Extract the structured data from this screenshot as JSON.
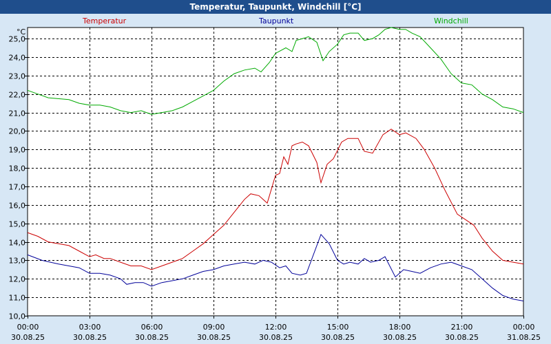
{
  "window": {
    "title": "Temperatur, Taupunkt, Windchill [°C]"
  },
  "chart_data": {
    "type": "line",
    "unit_label": "°C",
    "ylim": [
      10.0,
      25.0
    ],
    "y_ticks": [
      "10,0",
      "11,0",
      "12,0",
      "13,0",
      "14,0",
      "15,0",
      "16,0",
      "17,0",
      "18,0",
      "19,0",
      "20,0",
      "21,0",
      "22,0",
      "23,0",
      "24,0",
      "25,0"
    ],
    "x_hours_range": [
      0,
      24
    ],
    "x_ticks": [
      {
        "time": "00:00",
        "date": "30.08.25"
      },
      {
        "time": "03:00",
        "date": "30.08.25"
      },
      {
        "time": "06:00",
        "date": "30.08.25"
      },
      {
        "time": "09:00",
        "date": "30.08.25"
      },
      {
        "time": "12:00",
        "date": "30.08.25"
      },
      {
        "time": "15:00",
        "date": "30.08.25"
      },
      {
        "time": "18:00",
        "date": "30.08.25"
      },
      {
        "time": "21:00",
        "date": "30.08.25"
      },
      {
        "time": "00:00",
        "date": "31.08.25"
      }
    ],
    "grid": true,
    "series": [
      {
        "name": "Temperatur",
        "color": "#cc0000",
        "points": [
          [
            0,
            14.5
          ],
          [
            0.5,
            14.3
          ],
          [
            1,
            14.0
          ],
          [
            2,
            13.8
          ],
          [
            2.5,
            13.5
          ],
          [
            3,
            13.2
          ],
          [
            3.3,
            13.3
          ],
          [
            3.7,
            13.1
          ],
          [
            4,
            13.1
          ],
          [
            4.5,
            12.9
          ],
          [
            5,
            12.7
          ],
          [
            5.5,
            12.7
          ],
          [
            6,
            12.5
          ],
          [
            6.5,
            12.7
          ],
          [
            7,
            12.9
          ],
          [
            7.5,
            13.1
          ],
          [
            8,
            13.5
          ],
          [
            8.5,
            13.9
          ],
          [
            9,
            14.4
          ],
          [
            9.5,
            14.9
          ],
          [
            10,
            15.6
          ],
          [
            10.5,
            16.3
          ],
          [
            10.8,
            16.6
          ],
          [
            11.2,
            16.5
          ],
          [
            11.6,
            16.1
          ],
          [
            12,
            17.6
          ],
          [
            12.2,
            17.7
          ],
          [
            12.4,
            18.6
          ],
          [
            12.6,
            18.2
          ],
          [
            12.8,
            19.2
          ],
          [
            13,
            19.3
          ],
          [
            13.3,
            19.4
          ],
          [
            13.6,
            19.2
          ],
          [
            14,
            18.3
          ],
          [
            14.2,
            17.2
          ],
          [
            14.5,
            18.2
          ],
          [
            14.8,
            18.5
          ],
          [
            15.2,
            19.4
          ],
          [
            15.5,
            19.6
          ],
          [
            16,
            19.6
          ],
          [
            16.3,
            18.9
          ],
          [
            16.7,
            18.8
          ],
          [
            17.2,
            19.8
          ],
          [
            17.6,
            20.1
          ],
          [
            18,
            19.8
          ],
          [
            18.3,
            19.9
          ],
          [
            18.8,
            19.6
          ],
          [
            19.2,
            19.0
          ],
          [
            19.7,
            18.0
          ],
          [
            20.2,
            16.8
          ],
          [
            20.8,
            15.5
          ],
          [
            21.2,
            15.2
          ],
          [
            21.6,
            14.9
          ],
          [
            22,
            14.2
          ],
          [
            22.5,
            13.5
          ],
          [
            23,
            13.0
          ],
          [
            23.5,
            12.9
          ],
          [
            24,
            12.8
          ]
        ]
      },
      {
        "name": "Taupunkt",
        "color": "#000099",
        "points": [
          [
            0,
            13.3
          ],
          [
            0.7,
            13.0
          ],
          [
            1.5,
            12.8
          ],
          [
            2,
            12.7
          ],
          [
            2.5,
            12.6
          ],
          [
            3,
            12.3
          ],
          [
            3.5,
            12.3
          ],
          [
            4,
            12.2
          ],
          [
            4.5,
            12.0
          ],
          [
            4.8,
            11.7
          ],
          [
            5.2,
            11.8
          ],
          [
            5.6,
            11.8
          ],
          [
            6,
            11.6
          ],
          [
            6.5,
            11.8
          ],
          [
            7,
            11.9
          ],
          [
            7.5,
            12.0
          ],
          [
            8,
            12.2
          ],
          [
            8.5,
            12.4
          ],
          [
            9,
            12.5
          ],
          [
            9.5,
            12.7
          ],
          [
            10,
            12.8
          ],
          [
            10.5,
            12.9
          ],
          [
            11,
            12.8
          ],
          [
            11.4,
            13.0
          ],
          [
            11.8,
            12.9
          ],
          [
            12.2,
            12.6
          ],
          [
            12.5,
            12.7
          ],
          [
            12.8,
            12.3
          ],
          [
            13.2,
            12.2
          ],
          [
            13.5,
            12.3
          ],
          [
            14.2,
            14.4
          ],
          [
            14.6,
            13.9
          ],
          [
            15,
            13.0
          ],
          [
            15.3,
            12.8
          ],
          [
            15.6,
            12.9
          ],
          [
            16,
            12.8
          ],
          [
            16.3,
            13.1
          ],
          [
            16.6,
            12.9
          ],
          [
            17,
            13.0
          ],
          [
            17.3,
            13.2
          ],
          [
            17.8,
            12.1
          ],
          [
            18.2,
            12.5
          ],
          [
            18.6,
            12.4
          ],
          [
            19,
            12.3
          ],
          [
            19.5,
            12.6
          ],
          [
            20,
            12.8
          ],
          [
            20.5,
            12.9
          ],
          [
            21,
            12.7
          ],
          [
            21.5,
            12.5
          ],
          [
            22,
            12.0
          ],
          [
            22.5,
            11.5
          ],
          [
            23,
            11.1
          ],
          [
            23.5,
            10.9
          ],
          [
            24,
            10.8
          ]
        ]
      },
      {
        "name": "Windchill",
        "color": "#00aa00",
        "points": [
          [
            0,
            22.2
          ],
          [
            0.5,
            22.0
          ],
          [
            1,
            21.8
          ],
          [
            2,
            21.7
          ],
          [
            2.5,
            21.5
          ],
          [
            3,
            21.4
          ],
          [
            3.5,
            21.4
          ],
          [
            4,
            21.3
          ],
          [
            4.5,
            21.1
          ],
          [
            5,
            21.0
          ],
          [
            5.5,
            21.1
          ],
          [
            6,
            20.9
          ],
          [
            6.5,
            21.0
          ],
          [
            7,
            21.1
          ],
          [
            7.5,
            21.3
          ],
          [
            8,
            21.6
          ],
          [
            8.5,
            21.9
          ],
          [
            9,
            22.2
          ],
          [
            9.5,
            22.7
          ],
          [
            10,
            23.1
          ],
          [
            10.5,
            23.3
          ],
          [
            11,
            23.4
          ],
          [
            11.3,
            23.2
          ],
          [
            11.7,
            23.7
          ],
          [
            12,
            24.2
          ],
          [
            12.5,
            24.5
          ],
          [
            12.8,
            24.3
          ],
          [
            13,
            24.9
          ],
          [
            13.3,
            25.0
          ],
          [
            13.6,
            25.1
          ],
          [
            14,
            24.8
          ],
          [
            14.3,
            23.8
          ],
          [
            14.6,
            24.3
          ],
          [
            15,
            24.7
          ],
          [
            15.3,
            25.2
          ],
          [
            15.6,
            25.3
          ],
          [
            16,
            25.3
          ],
          [
            16.3,
            24.9
          ],
          [
            16.7,
            25.0
          ],
          [
            17,
            25.2
          ],
          [
            17.3,
            25.5
          ],
          [
            17.6,
            25.6
          ],
          [
            18,
            25.5
          ],
          [
            18.3,
            25.5
          ],
          [
            18.6,
            25.3
          ],
          [
            19,
            25.1
          ],
          [
            19.5,
            24.5
          ],
          [
            20,
            23.9
          ],
          [
            20.5,
            23.1
          ],
          [
            21,
            22.6
          ],
          [
            21.5,
            22.5
          ],
          [
            22,
            22.0
          ],
          [
            22.5,
            21.7
          ],
          [
            23,
            21.3
          ],
          [
            23.5,
            21.2
          ],
          [
            24,
            21.0
          ]
        ]
      }
    ]
  }
}
